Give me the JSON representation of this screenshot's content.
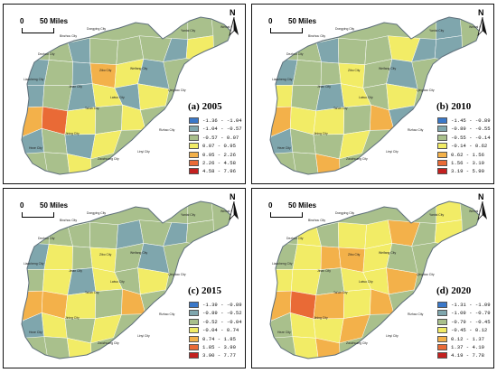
{
  "colors": {
    "c1": "#3a78c9",
    "c2": "#7fa6ad",
    "c3": "#a9c08c",
    "c4": "#f2ec66",
    "c5": "#f3b14a",
    "c6": "#e96a36",
    "c7": "#c4201f",
    "outline": "#5d6e7a"
  },
  "scale_zero": "0",
  "scale_label": "50 Miles",
  "north_label": "N",
  "cities": [
    "Binzhou City",
    "Dongying City",
    "Dezhou City",
    "Liaocheng City",
    "Jinan City",
    "Zibo City",
    "Weifang City",
    "Yantai City",
    "Weihai City",
    "Qingdao City",
    "Rizhao City",
    "Linyi City",
    "Zaozhuang City",
    "Jining City",
    "Heze City",
    "Tai'an City",
    "Laiwu City"
  ],
  "panels": [
    {
      "title": "(a) 2005",
      "legend": [
        "-1.36 - -1.04",
        "-1.04 - -0.57",
        "-0.57 - 0.07",
        "0.07 - 0.95",
        "0.95 - 2.26",
        "2.26 - 4.58",
        "4.58 - 7.96"
      ],
      "fills": [
        2,
        2,
        1,
        2,
        2,
        2,
        1,
        3,
        1,
        2,
        1,
        4,
        3,
        1,
        1,
        2,
        1,
        3,
        1,
        3,
        4,
        5,
        3,
        2,
        3,
        2,
        1,
        2,
        1,
        3,
        2,
        3,
        1,
        2,
        6,
        3,
        2,
        2,
        1,
        4,
        2,
        3,
        1,
        2,
        3,
        1,
        2,
        2
      ]
    },
    {
      "title": "(b) 2010",
      "legend": [
        "-1.45 - -0.89",
        "-0.89 - -0.55",
        "-0.55 - -0.14",
        "-0.14 - 0.62",
        "0.62 - 1.56",
        "1.56 - 3.19",
        "3.19 - 5.90"
      ],
      "fills": [
        1,
        2,
        1,
        2,
        2,
        3,
        1,
        1,
        1,
        2,
        2,
        3,
        2,
        1,
        3,
        2,
        1,
        3,
        2,
        3,
        4,
        3,
        3,
        2,
        4,
        1,
        1,
        2,
        2,
        3,
        2,
        4,
        1,
        1,
        6,
        3,
        2,
        3,
        1,
        3,
        2,
        2,
        1,
        2,
        3,
        1,
        3,
        3
      ]
    },
    {
      "title": "(c) 2015",
      "legend": [
        "-1.39 - -0.89",
        "-0.89 - -0.52",
        "-0.52 - -0.04",
        "-0.04 - 0.74",
        "0.74 - 1.85",
        "1.85 - 3.90",
        "3.90 - 7.77"
      ],
      "fills": [
        2,
        2,
        2,
        2,
        1,
        2,
        1,
        2,
        1,
        3,
        2,
        3,
        2,
        1,
        2,
        3,
        1,
        3,
        2,
        3,
        4,
        4,
        3,
        2,
        4,
        2,
        1,
        3,
        2,
        3,
        2,
        3,
        1,
        1,
        6,
        3,
        2,
        2,
        1,
        3,
        2,
        3,
        1,
        3,
        2,
        1,
        2,
        2
      ]
    },
    {
      "title": "(d) 2020",
      "legend": [
        "-1.31 - -1.09",
        "-1.09 - -0.79",
        "-0.79 - -0.45",
        "-0.45 - 0.12",
        "0.12 - 1.37",
        "1.37 - 4.19",
        "4.19 - 7.78"
      ],
      "fills": [
        3,
        3,
        2,
        3,
        3,
        4,
        2,
        3,
        2,
        3,
        4,
        4,
        3,
        2,
        3,
        3,
        2,
        3,
        3,
        4,
        4,
        5,
        4,
        3,
        4,
        2,
        2,
        3,
        3,
        4,
        3,
        4,
        2,
        2,
        6,
        3,
        2,
        3,
        2,
        4,
        3,
        3,
        1,
        3,
        3,
        1,
        3,
        3
      ]
    }
  ]
}
